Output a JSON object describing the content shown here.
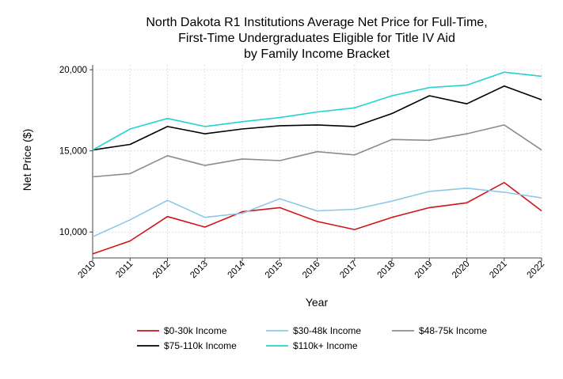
{
  "chart_data": {
    "type": "line",
    "title": [
      "North Dakota R1 Institutions Average Net Price for Full-Time,",
      "First-Time Undergraduates Eligible for Title IV Aid",
      "by Family Income Bracket"
    ],
    "xlabel": "Year",
    "ylabel": "Net Price ($)",
    "x": [
      2010,
      2011,
      2012,
      2013,
      2014,
      2015,
      2016,
      2017,
      2018,
      2019,
      2020,
      2021,
      2022
    ],
    "x_tick_labels": [
      "2010",
      "2011",
      "2012",
      "2013",
      "2014",
      "2015",
      "2016",
      "2017",
      "2018",
      "2019",
      "2020",
      "2021",
      "2022"
    ],
    "ylim": [
      8400,
      20300
    ],
    "y_ticks": [
      10000,
      15000,
      20000
    ],
    "y_tick_labels": [
      "10,000",
      "15,000",
      "20,000"
    ],
    "grid": true,
    "legend_position": "bottom",
    "series": [
      {
        "name": "$0-30k Income",
        "color": "#d0141a",
        "values": [
          8650,
          9450,
          10950,
          10300,
          11250,
          11500,
          10650,
          10150,
          10900,
          11500,
          11800,
          13050,
          11300
        ]
      },
      {
        "name": "$30-48k Income",
        "color": "#8ec8e6",
        "values": [
          9700,
          10750,
          11950,
          10900,
          11150,
          12050,
          11300,
          11400,
          11900,
          12500,
          12700,
          12450,
          12100
        ]
      },
      {
        "name": "$48-75k Income",
        "color": "#8c8c8c",
        "values": [
          13400,
          13600,
          14700,
          14100,
          14500,
          14400,
          14950,
          14750,
          15700,
          15650,
          16050,
          16600,
          15050
        ]
      },
      {
        "name": "$75-110k Income",
        "color": "#000000",
        "values": [
          15050,
          15400,
          16500,
          16050,
          16350,
          16550,
          16600,
          16500,
          17300,
          18400,
          17900,
          19000,
          18150
        ]
      },
      {
        "name": "$110k+ Income",
        "color": "#24d3cf",
        "values": [
          15050,
          16350,
          17000,
          16500,
          16800,
          17050,
          17400,
          17650,
          18400,
          18900,
          19050,
          19850,
          19600
        ]
      }
    ]
  }
}
